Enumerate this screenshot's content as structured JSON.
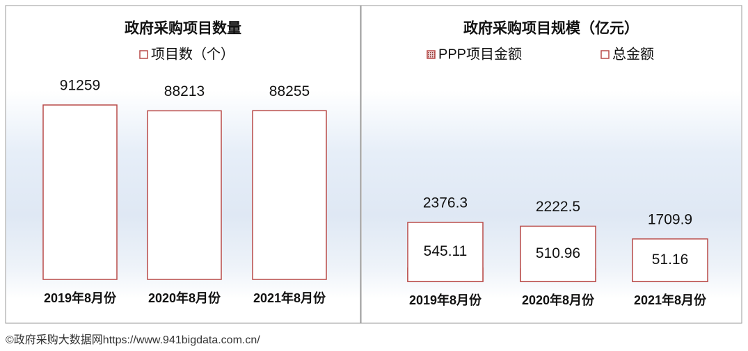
{
  "chart_data": [
    {
      "type": "bar",
      "title": "政府采购项目数量",
      "categories": [
        "2019年8月份",
        "2020年8月份",
        "2021年8月份"
      ],
      "series": [
        {
          "name": "项目数（个）",
          "color": "#b94a48",
          "values": [
            91259,
            88213,
            88255
          ]
        }
      ],
      "ylim": [
        0,
        100000
      ]
    },
    {
      "type": "bar",
      "title": "政府采购项目规模（亿元）",
      "categories": [
        "2019年8月份",
        "2020年8月份",
        "2021年8月份"
      ],
      "series": [
        {
          "name": "PPP项目金额",
          "color": "#b94a48",
          "pattern": "dots",
          "values": [
            545.11,
            510.96,
            51.16
          ]
        },
        {
          "name": "总金额",
          "color": "#b94a48",
          "values": [
            2376.3,
            2222.5,
            1709.9
          ]
        }
      ],
      "ylim": [
        0,
        10000
      ]
    }
  ],
  "footer": "©政府采购大数据网https://www.941bigdata.com.cn/"
}
